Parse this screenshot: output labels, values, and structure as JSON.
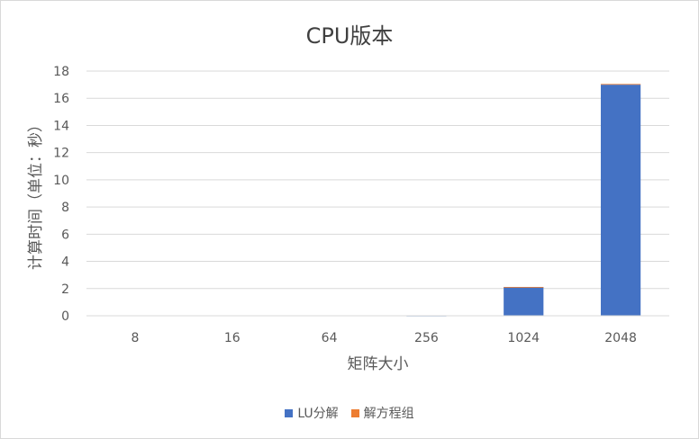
{
  "chart_data": {
    "type": "bar",
    "stacked": true,
    "title": "CPU版本",
    "xlabel": "矩阵大小",
    "ylabel": "计算时间（单位：秒）",
    "categories": [
      "8",
      "16",
      "64",
      "256",
      "1024",
      "2048"
    ],
    "ylim": [
      0,
      18
    ],
    "yticks": [
      0,
      2,
      4,
      6,
      8,
      10,
      12,
      14,
      16,
      18
    ],
    "grid": true,
    "legend_position": "bottom",
    "series": [
      {
        "name": "LU分解",
        "color": "#4472c4",
        "values": [
          0,
          0,
          0,
          0.01,
          2.1,
          17.0
        ]
      },
      {
        "name": "解方程组",
        "color": "#ed7d31",
        "values": [
          0,
          0,
          0,
          0,
          0.02,
          0.05
        ]
      }
    ]
  }
}
